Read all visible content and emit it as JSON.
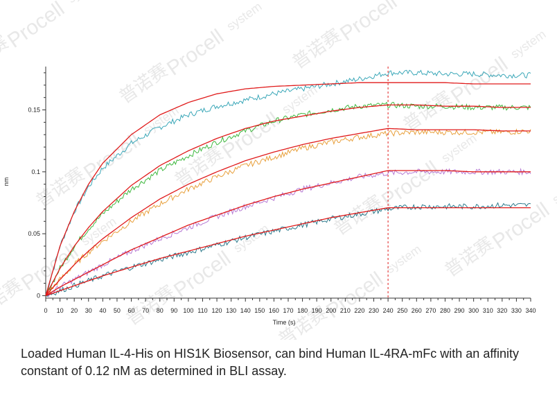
{
  "caption": "Loaded Human IL-4-His on HIS1K Biosensor, can bind Human IL-4RA-mFc with an affinity constant of 0.12 nM as determined in BLI assay.",
  "watermark": {
    "brand": "Procell",
    "suffix": "system",
    "cn": "普诺赛"
  },
  "colors": {
    "fit": "#e01a1a",
    "marker": "#e01a1a",
    "axis": "#333333"
  },
  "chart_data": {
    "type": "line",
    "xlabel": "Time (s)",
    "ylabel": "nm",
    "xlim": [
      0,
      340
    ],
    "ylim": [
      -0.002,
      0.185
    ],
    "x_ticks": [
      0,
      10,
      20,
      30,
      40,
      50,
      60,
      70,
      80,
      90,
      100,
      110,
      120,
      130,
      140,
      150,
      160,
      170,
      180,
      190,
      200,
      210,
      220,
      230,
      240,
      250,
      260,
      270,
      280,
      290,
      300,
      310,
      320,
      330,
      340
    ],
    "x_tick_labels": [
      "0",
      "10",
      "20",
      "30",
      "40",
      "50",
      "60",
      "70",
      "80",
      "90",
      "100",
      "110",
      "120",
      "130",
      "140",
      "150",
      "160",
      "170",
      "180",
      "190",
      "200",
      "210",
      "220",
      "230",
      "240",
      "250",
      "260",
      "270",
      "280",
      "290",
      "300",
      "310",
      "320",
      "330",
      "340"
    ],
    "y_ticks": [
      0,
      0.05,
      0.1,
      0.15
    ],
    "y_tick_labels": [
      "0",
      "0.05",
      "0.1",
      "0.15"
    ],
    "dissociation_start": 240,
    "series": [
      {
        "color": "#3aa7b8",
        "points": [
          [
            0,
            0
          ],
          [
            10,
            0.04
          ],
          [
            20,
            0.068
          ],
          [
            30,
            0.088
          ],
          [
            40,
            0.103
          ],
          [
            60,
            0.123
          ],
          [
            80,
            0.136
          ],
          [
            100,
            0.146
          ],
          [
            120,
            0.153
          ],
          [
            140,
            0.158
          ],
          [
            160,
            0.163
          ],
          [
            180,
            0.167
          ],
          [
            200,
            0.171
          ],
          [
            220,
            0.175
          ],
          [
            240,
            0.18
          ],
          [
            260,
            0.18
          ],
          [
            280,
            0.179
          ],
          [
            300,
            0.179
          ],
          [
            320,
            0.178
          ],
          [
            340,
            0.178
          ]
        ]
      },
      {
        "color": "#3fb83f",
        "points": [
          [
            0,
            0
          ],
          [
            10,
            0.022
          ],
          [
            20,
            0.04
          ],
          [
            30,
            0.054
          ],
          [
            40,
            0.066
          ],
          [
            60,
            0.086
          ],
          [
            80,
            0.101
          ],
          [
            100,
            0.113
          ],
          [
            120,
            0.124
          ],
          [
            140,
            0.133
          ],
          [
            160,
            0.141
          ],
          [
            180,
            0.146
          ],
          [
            200,
            0.15
          ],
          [
            220,
            0.153
          ],
          [
            240,
            0.154
          ],
          [
            260,
            0.153
          ],
          [
            280,
            0.153
          ],
          [
            300,
            0.152
          ],
          [
            320,
            0.152
          ],
          [
            340,
            0.152
          ]
        ]
      },
      {
        "color": "#e8a03c",
        "points": [
          [
            0,
            0
          ],
          [
            10,
            0.013
          ],
          [
            20,
            0.025
          ],
          [
            30,
            0.035
          ],
          [
            40,
            0.044
          ],
          [
            60,
            0.06
          ],
          [
            80,
            0.074
          ],
          [
            100,
            0.086
          ],
          [
            120,
            0.096
          ],
          [
            140,
            0.105
          ],
          [
            160,
            0.112
          ],
          [
            180,
            0.119
          ],
          [
            200,
            0.124
          ],
          [
            220,
            0.128
          ],
          [
            240,
            0.131
          ],
          [
            260,
            0.132
          ],
          [
            280,
            0.132
          ],
          [
            300,
            0.132
          ],
          [
            320,
            0.132
          ],
          [
            340,
            0.133
          ]
        ]
      },
      {
        "color": "#b67ad4",
        "points": [
          [
            0,
            0
          ],
          [
            10,
            0.007
          ],
          [
            20,
            0.013
          ],
          [
            30,
            0.019
          ],
          [
            40,
            0.025
          ],
          [
            60,
            0.036
          ],
          [
            80,
            0.046
          ],
          [
            100,
            0.055
          ],
          [
            120,
            0.064
          ],
          [
            140,
            0.072
          ],
          [
            160,
            0.079
          ],
          [
            180,
            0.086
          ],
          [
            200,
            0.091
          ],
          [
            220,
            0.096
          ],
          [
            240,
            0.099
          ],
          [
            260,
            0.1
          ],
          [
            280,
            0.1
          ],
          [
            300,
            0.1
          ],
          [
            320,
            0.1
          ],
          [
            340,
            0.1
          ]
        ]
      },
      {
        "color": "#2d7a8c",
        "points": [
          [
            0,
            0
          ],
          [
            10,
            0.004
          ],
          [
            20,
            0.008
          ],
          [
            30,
            0.012
          ],
          [
            40,
            0.016
          ],
          [
            60,
            0.023
          ],
          [
            80,
            0.029
          ],
          [
            100,
            0.035
          ],
          [
            120,
            0.041
          ],
          [
            140,
            0.047
          ],
          [
            160,
            0.052
          ],
          [
            180,
            0.057
          ],
          [
            200,
            0.062
          ],
          [
            220,
            0.066
          ],
          [
            240,
            0.07
          ],
          [
            260,
            0.072
          ],
          [
            280,
            0.072
          ],
          [
            300,
            0.072
          ],
          [
            320,
            0.073
          ],
          [
            340,
            0.073
          ]
        ]
      }
    ],
    "fits": [
      {
        "points": [
          [
            0,
            0
          ],
          [
            10,
            0.04
          ],
          [
            20,
            0.068
          ],
          [
            30,
            0.09
          ],
          [
            40,
            0.107
          ],
          [
            60,
            0.13
          ],
          [
            80,
            0.146
          ],
          [
            100,
            0.156
          ],
          [
            120,
            0.163
          ],
          [
            140,
            0.167
          ],
          [
            160,
            0.169
          ],
          [
            180,
            0.17
          ],
          [
            200,
            0.171
          ],
          [
            220,
            0.172
          ],
          [
            240,
            0.172
          ],
          [
            260,
            0.172
          ],
          [
            280,
            0.172
          ],
          [
            300,
            0.171
          ],
          [
            320,
            0.171
          ],
          [
            340,
            0.171
          ]
        ]
      },
      {
        "points": [
          [
            0,
            0
          ],
          [
            10,
            0.022
          ],
          [
            20,
            0.04
          ],
          [
            30,
            0.055
          ],
          [
            40,
            0.068
          ],
          [
            60,
            0.089
          ],
          [
            80,
            0.105
          ],
          [
            100,
            0.117
          ],
          [
            120,
            0.127
          ],
          [
            140,
            0.135
          ],
          [
            160,
            0.141
          ],
          [
            180,
            0.145
          ],
          [
            200,
            0.149
          ],
          [
            220,
            0.152
          ],
          [
            240,
            0.154
          ],
          [
            260,
            0.154
          ],
          [
            280,
            0.153
          ],
          [
            300,
            0.153
          ],
          [
            320,
            0.152
          ],
          [
            340,
            0.152
          ]
        ]
      },
      {
        "points": [
          [
            0,
            0
          ],
          [
            10,
            0.013
          ],
          [
            20,
            0.025
          ],
          [
            30,
            0.036
          ],
          [
            40,
            0.046
          ],
          [
            60,
            0.063
          ],
          [
            80,
            0.078
          ],
          [
            100,
            0.09
          ],
          [
            120,
            0.1
          ],
          [
            140,
            0.109
          ],
          [
            160,
            0.116
          ],
          [
            180,
            0.122
          ],
          [
            200,
            0.127
          ],
          [
            220,
            0.131
          ],
          [
            240,
            0.135
          ],
          [
            260,
            0.134
          ],
          [
            280,
            0.134
          ],
          [
            300,
            0.134
          ],
          [
            320,
            0.133
          ],
          [
            340,
            0.133
          ]
        ]
      },
      {
        "points": [
          [
            0,
            0
          ],
          [
            10,
            0.007
          ],
          [
            20,
            0.013
          ],
          [
            30,
            0.019
          ],
          [
            40,
            0.025
          ],
          [
            60,
            0.037
          ],
          [
            80,
            0.047
          ],
          [
            100,
            0.057
          ],
          [
            120,
            0.065
          ],
          [
            140,
            0.073
          ],
          [
            160,
            0.08
          ],
          [
            180,
            0.086
          ],
          [
            200,
            0.091
          ],
          [
            220,
            0.096
          ],
          [
            240,
            0.101
          ],
          [
            260,
            0.101
          ],
          [
            280,
            0.101
          ],
          [
            300,
            0.1
          ],
          [
            320,
            0.1
          ],
          [
            340,
            0.1
          ]
        ]
      },
      {
        "points": [
          [
            0,
            0
          ],
          [
            10,
            0.004
          ],
          [
            20,
            0.008
          ],
          [
            30,
            0.012
          ],
          [
            40,
            0.016
          ],
          [
            60,
            0.023
          ],
          [
            80,
            0.03
          ],
          [
            100,
            0.036
          ],
          [
            120,
            0.042
          ],
          [
            140,
            0.048
          ],
          [
            160,
            0.053
          ],
          [
            180,
            0.058
          ],
          [
            200,
            0.063
          ],
          [
            220,
            0.067
          ],
          [
            240,
            0.071
          ],
          [
            260,
            0.071
          ],
          [
            280,
            0.071
          ],
          [
            300,
            0.071
          ],
          [
            320,
            0.071
          ],
          [
            340,
            0.071
          ]
        ]
      }
    ]
  }
}
